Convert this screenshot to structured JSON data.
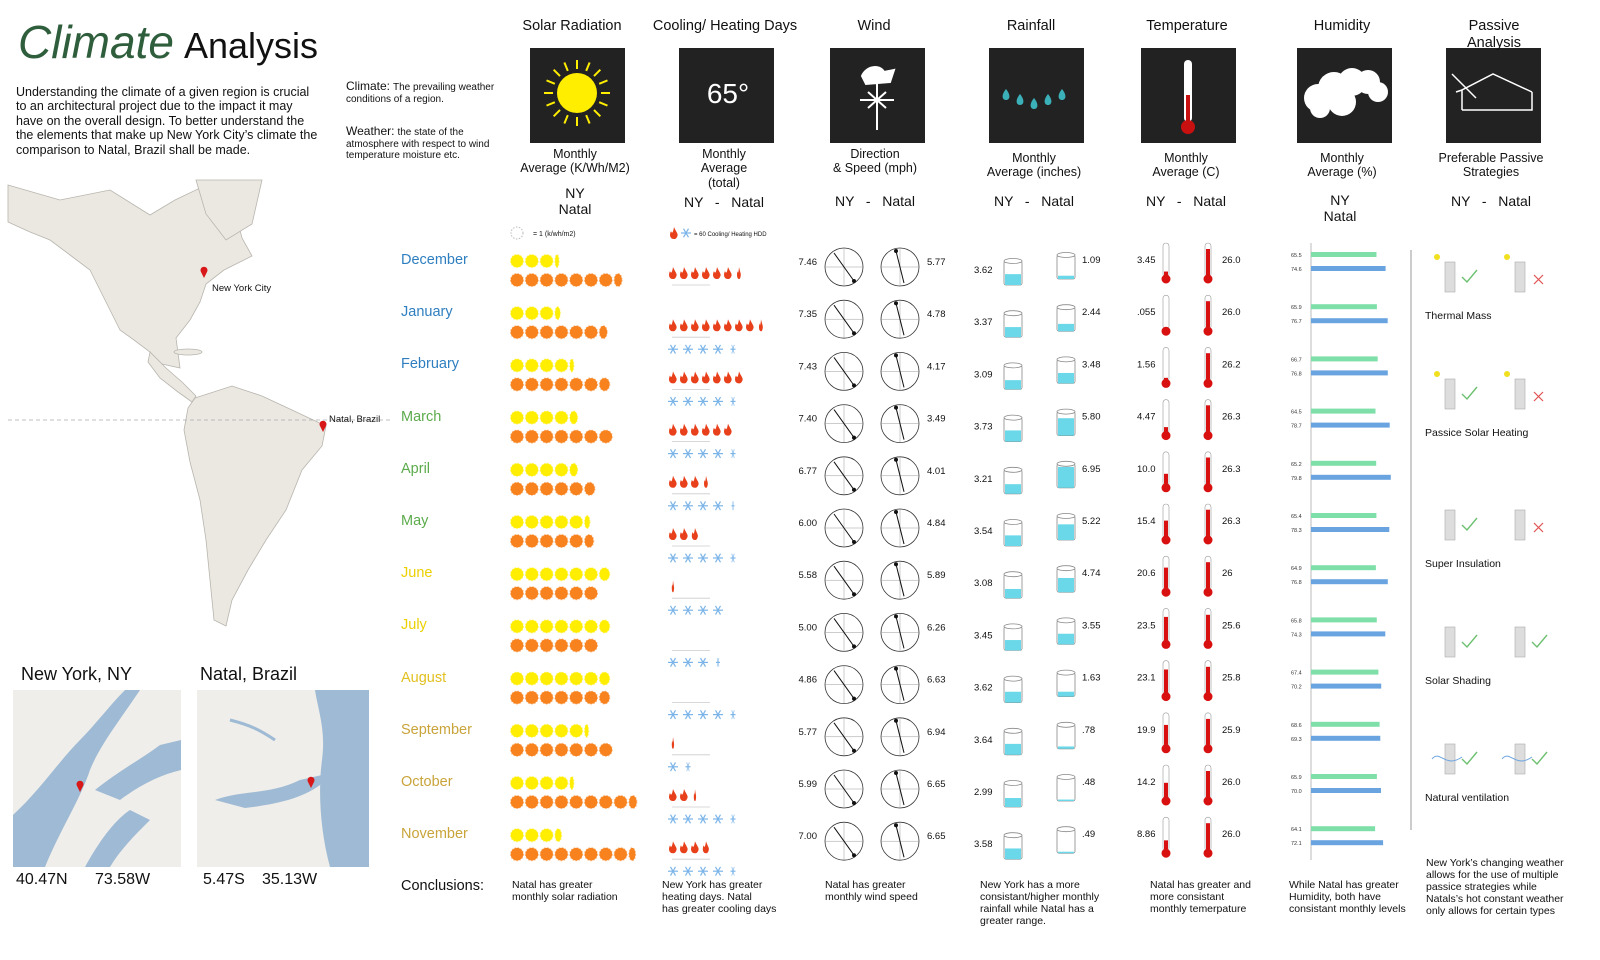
{
  "header": {
    "title_em": "Climate",
    "title_rest": "Analysis",
    "intro": "Understanding the climate of a given region is crucial to an architectural project due to the impact it may have on the overall design. To better understand the the elements that make up New York City’s climate the comparison to Natal, Brazil shall be made."
  },
  "definitions": [
    {
      "term": "Climate:",
      "text": "The prevailing weather conditions of a region."
    },
    {
      "term": "Weather:",
      "text": "the state of the atmosphere with respect to wind temperature moisture etc."
    }
  ],
  "map": {
    "labels": [
      "New York City",
      "Natal, Brazil"
    ]
  },
  "cities": [
    {
      "name": "New York, NY",
      "lat": "40.47N",
      "lon": "73.58W"
    },
    {
      "name": "Natal, Brazil",
      "lat": "5.47S",
      "lon": "35.13W"
    }
  ],
  "months": [
    {
      "name": "December",
      "color": "#2f7fc0"
    },
    {
      "name": "January",
      "color": "#2f7fc0"
    },
    {
      "name": "February",
      "color": "#2f7fc0"
    },
    {
      "name": "March",
      "color": "#5cab4c"
    },
    {
      "name": "April",
      "color": "#5cab4c"
    },
    {
      "name": "May",
      "color": "#5cab4c"
    },
    {
      "name": "June",
      "color": "#ecd000"
    },
    {
      "name": "July",
      "color": "#ecd000"
    },
    {
      "name": "August",
      "color": "#e2c020"
    },
    {
      "name": "September",
      "color": "#c9a43a"
    },
    {
      "name": "October",
      "color": "#c9a43a"
    },
    {
      "name": "November",
      "color": "#c9a43a"
    }
  ],
  "conclusions_label": "Conclusions:",
  "columns": {
    "solar": {
      "title": "Solar Radiation",
      "subtitle": "Monthly\nAverage (K/Wh/M2)",
      "legend": "NY\nNatal",
      "unit_label": "= 1 (k/wh/m2)",
      "conclusion": "Natal has greater\nmonthly solar radiation",
      "series": [
        {
          "color": "#ffee00",
          "values": [
            3.3,
            3.4,
            4.3,
            4.6,
            4.6,
            5.4,
            6.8,
            6.8,
            6.8,
            5.3,
            4.3,
            3.5
          ]
        },
        {
          "color": "#f7821e",
          "values": [
            7.6,
            6.6,
            6.8,
            7.0,
            5.8,
            5.7,
            6.0,
            6.0,
            6.8,
            7.0,
            8.6,
            8.5
          ]
        }
      ]
    },
    "cooling": {
      "title": "Cooling/ Heating Days",
      "icon_text": "65°",
      "subtitle": "Monthly\nAverage\n(total)",
      "legend": "NY   -   Natal",
      "unit_label": "= 60 Cooling/ Heating HDD",
      "conclusion": "New York has greater\nheating days. Natal\nhas greater cooling days",
      "series": [
        {
          "color": "#e8401a",
          "values": [
            6.5,
            8.5,
            7,
            6,
            3.5,
            2.8,
            0.3,
            0,
            0,
            0.3,
            2.3,
            3.8
          ]
        },
        {
          "color": "#7ab4e8",
          "values": [
            0,
            4.5,
            4.5,
            4.5,
            4.3,
            4.5,
            4,
            3.4,
            4.5,
            1.5,
            4.5,
            4.5
          ]
        }
      ]
    },
    "wind": {
      "title": "Wind",
      "subtitle": "Direction\n& Speed (mph)",
      "legend": "NY   -   Natal",
      "conclusion": "Natal has greater\nmonthly wind speed",
      "series": [
        {
          "values": [
            7.46,
            7.35,
            7.43,
            7.4,
            6.77,
            6.0,
            5.58,
            5.0,
            4.86,
            5.77,
            5.99,
            7.0
          ],
          "value_labels": [
            "7.46",
            "7.35",
            "7.43",
            "7.40",
            "6.77",
            "6.00",
            "5.58",
            "5.00",
            "4.86",
            "5.77",
            "5.99",
            "7.00"
          ]
        },
        {
          "values": [
            5.77,
            4.78,
            4.17,
            3.49,
            4.01,
            4.84,
            5.89,
            6.26,
            6.63,
            6.94,
            6.65,
            6.65
          ],
          "value_labels": [
            "5.77",
            "4.78",
            "4.17",
            "3.49",
            "4.01",
            "4.84",
            "5.89",
            "6.26",
            "6.63",
            "6.94",
            "6.65",
            "6.65"
          ]
        }
      ]
    },
    "rainfall": {
      "title": "Rainfall",
      "subtitle": "Monthly\nAverage (inches)",
      "legend": "NY   -   Natal",
      "conclusion": "New York has a more\nconsistant/higher monthly\nrainfall while Natal has a\ngreater range.",
      "color": "#6ad8e8",
      "ylim": [
        0,
        8
      ],
      "series": [
        {
          "values": [
            3.62,
            3.37,
            3.09,
            3.73,
            3.21,
            3.54,
            3.08,
            3.45,
            3.62,
            3.64,
            2.99,
            3.58
          ],
          "value_labels": [
            "3.62",
            "3.37",
            "3.09",
            "3.73",
            "3.21",
            "3.54",
            "3.08",
            "3.45",
            "3.62",
            "3.64",
            "2.99",
            "3.58"
          ]
        },
        {
          "values": [
            1.09,
            2.44,
            3.48,
            5.8,
            6.95,
            5.22,
            4.74,
            3.55,
            1.63,
            0.78,
            0.48,
            0.49
          ],
          "value_labels": [
            "1.09",
            "2.44",
            "3.48",
            "5.80",
            "6.95",
            "5.22",
            "4.74",
            "3.55",
            "1.63",
            ".78",
            ".48",
            ".49"
          ]
        }
      ]
    },
    "temperature": {
      "title": "Temperature",
      "subtitle": "Monthly\nAverage (C)",
      "legend": "NY   -   Natal",
      "conclusion": "Natal has greater and\nmore consistant\nmonthly temerpature",
      "color": "#d81010",
      "ylim": [
        0,
        30
      ],
      "series": [
        {
          "values": [
            3.45,
            0.055,
            1.56,
            4.47,
            10.0,
            15.4,
            20.6,
            23.5,
            23.1,
            19.9,
            14.2,
            8.86
          ],
          "value_labels": [
            "3.45",
            ".055",
            "1.56",
            "4.47",
            "10.0",
            "15.4",
            "20.6",
            "23.5",
            "23.1",
            "19.9",
            "14.2",
            "8.86"
          ]
        },
        {
          "values": [
            26.0,
            26.0,
            26.2,
            26.3,
            26.3,
            26.3,
            26,
            25.6,
            25.8,
            25.9,
            26.0,
            26.0
          ],
          "value_labels": [
            "26.0",
            "26.0",
            "26.2",
            "26.3",
            "26.3",
            "26.3",
            "26",
            "25.6",
            "25.8",
            "25.9",
            "26.0",
            "26.0"
          ]
        }
      ]
    },
    "humidity": {
      "title": "Humidity",
      "subtitle": "Monthly\nAverage (%)",
      "legend": "NY\nNatal",
      "conclusion": "While Natal has greater\nHumidity, both have\nconsistant monthly levels",
      "xlim": [
        0,
        80
      ],
      "series": [
        {
          "color": "#7ee0a8",
          "values": [
            65.5,
            65.9,
            66.7,
            64.5,
            65.2,
            65.4,
            64.9,
            65.8,
            67.4,
            68.6,
            65.9,
            64.1
          ],
          "value_labels": [
            "65.5",
            "65.9",
            "66.7",
            "64.5",
            "65.2",
            "65.4",
            "64.9",
            "65.8",
            "67.4",
            "68.6",
            "65.9",
            "64.1"
          ]
        },
        {
          "color": "#6aa4e0",
          "values": [
            74.6,
            76.7,
            76.8,
            78.7,
            79.8,
            78.3,
            76.8,
            74.3,
            70.2,
            69.3,
            70.0,
            72.1
          ],
          "value_labels": [
            "74.6",
            "76.7",
            "76.8",
            "78.7",
            "79.8",
            "78.3",
            "76.8",
            "74.3",
            "70.2",
            "69.3",
            "70.0",
            "72.1"
          ]
        }
      ]
    },
    "passive": {
      "title": "Passive Analysis",
      "subtitle": "Preferable Passive\nStrategies",
      "legend": "NY   -   Natal",
      "conclusion": "New York’s changing weather\nallows for the use of multiple\npassice strategies while\nNatals’s hot constant weather\nonly allows for certain types",
      "strategies": [
        {
          "name": "Thermal Mass",
          "ny": true,
          "natal": false
        },
        {
          "name": "Passice Solar Heating",
          "ny": true,
          "natal": false
        },
        {
          "name": "Super Insulation",
          "ny": true,
          "natal": false
        },
        {
          "name": "Solar Shading",
          "ny": true,
          "natal": true
        },
        {
          "name": "Natural ventilation",
          "ny": true,
          "natal": true
        }
      ]
    }
  }
}
